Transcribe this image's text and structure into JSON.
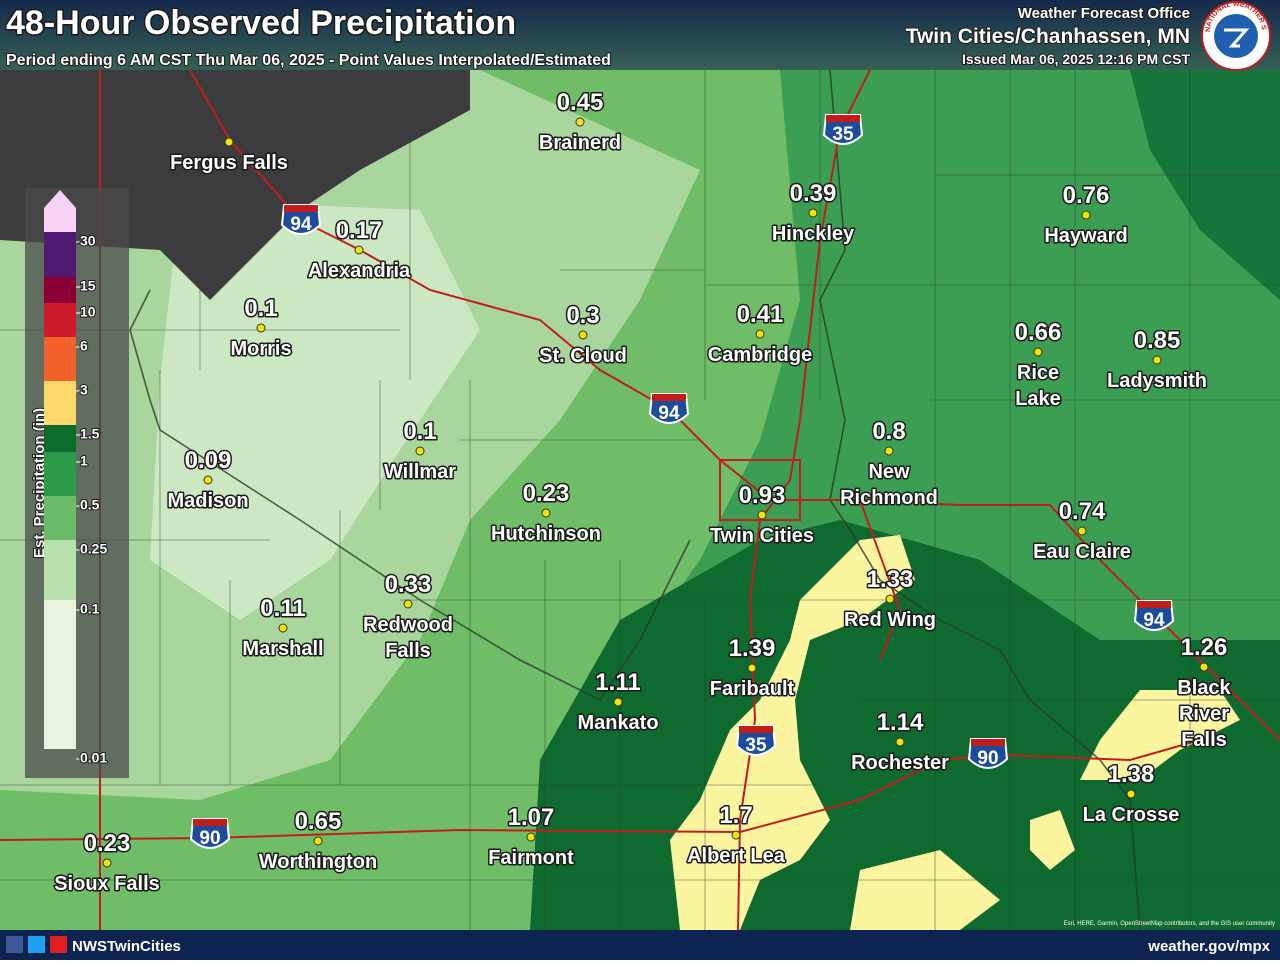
{
  "header": {
    "title": "48-Hour Observed Precipitation",
    "subtitle": "Period ending 6 AM CST Thu Mar 06, 2025 - Point Values Interpolated/Estimated",
    "office_line1": "Weather Forecast Office",
    "office_line2": "Twin Cities/Chanhassen, MN",
    "issued": "Issued Mar 06, 2025 12:16 PM CST",
    "logo_text": "NATIONAL WEATHER SERVICE"
  },
  "legend": {
    "title": "Est. Precipitation (in)",
    "ticks": [
      30,
      15,
      10,
      6,
      3,
      1.5,
      1,
      0.5,
      0.25,
      0.1,
      0.01
    ],
    "colors": [
      "#4e1a72",
      "#8a0034",
      "#cc1b2a",
      "#f2622a",
      "#fdd86b",
      "#0e6b2e",
      "#2d9a4a",
      "#6cbb6a",
      "#b8dfad",
      "#e8f3e0"
    ],
    "arrow_color": "#f8d2f4"
  },
  "cities": [
    {
      "name": "Fergus Falls"
    },
    {
      "name": "Brainerd",
      "value": 0.45
    },
    {
      "name": "Hinckley",
      "value": 0.39
    },
    {
      "name": "Hayward",
      "value": 0.76
    },
    {
      "name": "Alexandria",
      "value": 0.17
    },
    {
      "name": "Morris",
      "value": 0.1
    },
    {
      "name": "St. Cloud",
      "value": 0.3
    },
    {
      "name": "Cambridge",
      "value": 0.41
    },
    {
      "name": "Rice Lake",
      "value": 0.66
    },
    {
      "name": "Ladysmith",
      "value": 0.85
    },
    {
      "name": "Willmar",
      "value": 0.1
    },
    {
      "name": "Madison",
      "value": 0.09
    },
    {
      "name": "New Richmond",
      "value": 0.8
    },
    {
      "name": "Hutchinson",
      "value": 0.23
    },
    {
      "name": "Twin Cities",
      "value": 0.93
    },
    {
      "name": "Eau Claire",
      "value": 0.74
    },
    {
      "name": "Red Wing",
      "value": 1.33
    },
    {
      "name": "Redwood Falls",
      "value": 0.33
    },
    {
      "name": "Marshall",
      "value": 0.11
    },
    {
      "name": "Faribault",
      "value": 1.39
    },
    {
      "name": "Black River Falls",
      "value": 1.26
    },
    {
      "name": "Mankato",
      "value": 1.11
    },
    {
      "name": "Rochester",
      "value": 1.14
    },
    {
      "name": "La Crosse",
      "value": 1.38
    },
    {
      "name": "Fairmont",
      "value": 1.07
    },
    {
      "name": "Albert Lea",
      "value": 1.7
    },
    {
      "name": "Worthington",
      "value": 0.65
    },
    {
      "name": "Sioux Falls",
      "value": 0.23
    }
  ],
  "interstates": [
    "94",
    "35",
    "94",
    "35",
    "90",
    "90",
    "94"
  ],
  "footer": {
    "social": "NWSTwinCities",
    "website": "weather.gov/mpx",
    "attribution": "Esri, HERE, Garmin, OpenStreetMap contributors, and the GIS user community"
  }
}
